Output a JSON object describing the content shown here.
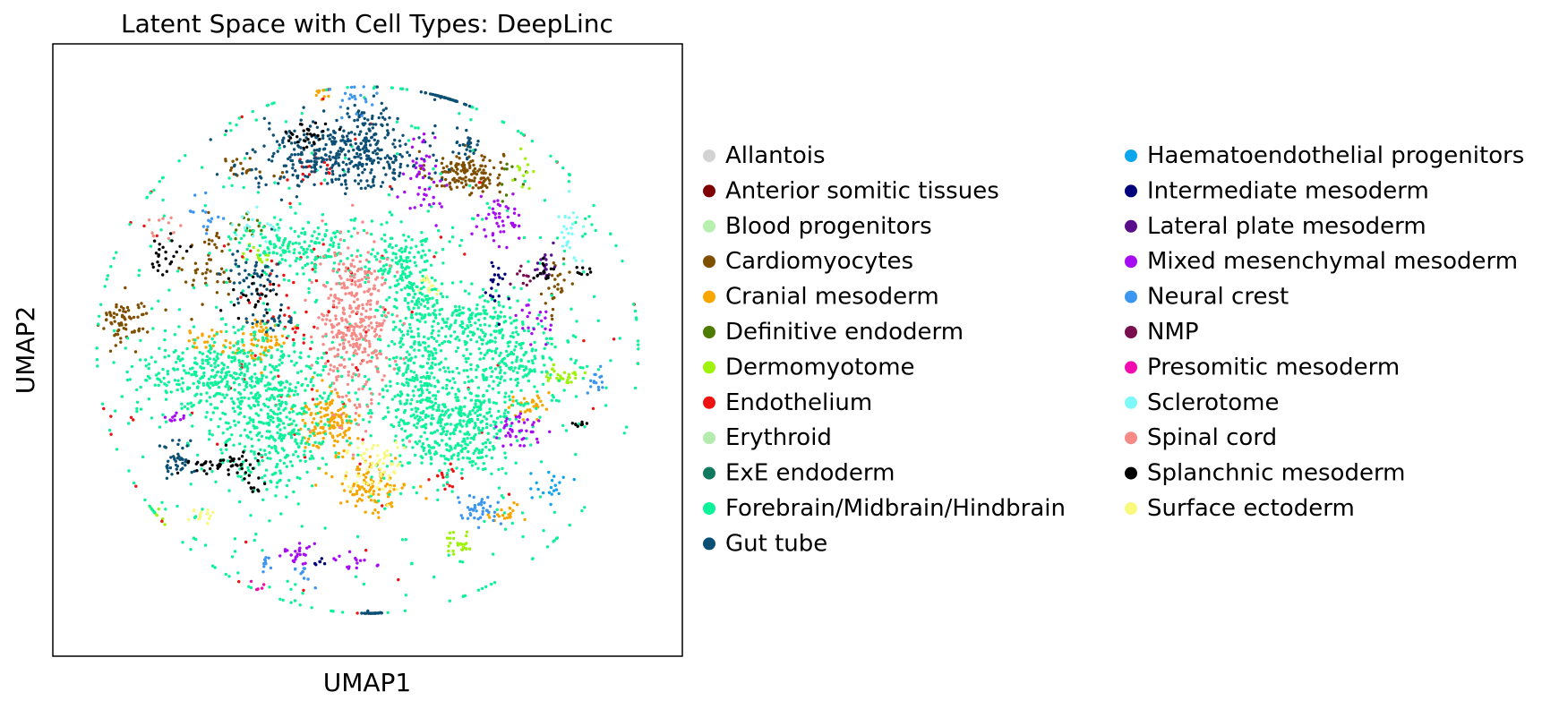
{
  "chart_data": {
    "type": "scatter",
    "title": "Latent Space with Cell Types: DeepLinc",
    "xlabel": "UMAP1",
    "ylabel": "UMAP2",
    "x_ticks": [],
    "y_ticks": [],
    "xlim": [
      -10,
      10
    ],
    "ylim": [
      -10,
      10
    ],
    "grid": false,
    "legend_position": "right",
    "series": [
      {
        "name": "Allantois",
        "color": "#d3d3d3",
        "clusters": []
      },
      {
        "name": "Anterior somitic tissues",
        "color": "#800000",
        "clusters": []
      },
      {
        "name": "Blood progenitors",
        "color": "#b8f0b0",
        "clusters": []
      },
      {
        "name": "Cardiomyocytes",
        "color": "#7f4f00",
        "clusters": [
          {
            "x": 3.1,
            "y": 5.8,
            "sx": 0.6,
            "sy": 0.35,
            "n": 140
          },
          {
            "x": -7.7,
            "y": 1.0,
            "sx": 0.4,
            "sy": 0.4,
            "n": 70
          },
          {
            "x": -5.0,
            "y": 2.6,
            "sx": 0.4,
            "sy": 0.7,
            "n": 45
          },
          {
            "x": -3.8,
            "y": 6.0,
            "sx": 0.5,
            "sy": 0.2,
            "n": 20
          },
          {
            "x": 6.0,
            "y": 2.0,
            "sx": 0.2,
            "sy": 0.5,
            "n": 25
          }
        ]
      },
      {
        "name": "Cranial mesoderm",
        "color": "#f7a600",
        "clusters": [
          {
            "x": -1.2,
            "y": -2.3,
            "sx": 0.5,
            "sy": 0.5,
            "n": 130
          },
          {
            "x": 0.1,
            "y": -4.4,
            "sx": 0.6,
            "sy": 0.5,
            "n": 110
          },
          {
            "x": -3.3,
            "y": 0.4,
            "sx": 0.35,
            "sy": 0.35,
            "n": 60
          },
          {
            "x": -5.0,
            "y": 0.3,
            "sx": 0.5,
            "sy": 0.2,
            "n": 30
          },
          {
            "x": 5.2,
            "y": -1.9,
            "sx": 0.4,
            "sy": 0.2,
            "n": 30
          },
          {
            "x": 4.3,
            "y": -5.3,
            "sx": 0.3,
            "sy": 0.2,
            "n": 20
          },
          {
            "x": -1.3,
            "y": 8.5,
            "sx": 0.2,
            "sy": 0.2,
            "n": 10
          }
        ]
      },
      {
        "name": "Definitive endoderm",
        "color": "#4f7a00",
        "clusters": [
          {
            "x": -3.8,
            "y": 4.0,
            "sx": 0.3,
            "sy": 0.2,
            "n": 15
          },
          {
            "x": 4.6,
            "y": 5.6,
            "sx": 0.2,
            "sy": 0.3,
            "n": 10
          }
        ]
      },
      {
        "name": "Dermomyotome",
        "color": "#9ef20c",
        "clusters": [
          {
            "x": 6.2,
            "y": -0.8,
            "sx": 0.25,
            "sy": 0.2,
            "n": 30
          },
          {
            "x": 2.9,
            "y": -6.3,
            "sx": 0.3,
            "sy": 0.2,
            "n": 25
          },
          {
            "x": -6.9,
            "y": -5.5,
            "sx": 0.3,
            "sy": 0.15,
            "n": 12
          },
          {
            "x": -3.4,
            "y": 3.2,
            "sx": 0.4,
            "sy": 0.2,
            "n": 15
          },
          {
            "x": 4.9,
            "y": 5.8,
            "sx": 0.2,
            "sy": 0.3,
            "n": 12
          }
        ]
      },
      {
        "name": "Endothelium",
        "color": "#ee1111",
        "clusters": [
          {
            "x": -2.2,
            "y": 1.0,
            "sx": 1.2,
            "sy": 1.6,
            "n": 60
          },
          {
            "x": 0.0,
            "y": 0.0,
            "sx": 5.5,
            "sy": 5.5,
            "n": 60
          },
          {
            "x": 2.5,
            "y": -4.2,
            "sx": 0.3,
            "sy": 0.3,
            "n": 15
          },
          {
            "x": -1.8,
            "y": 5.9,
            "sx": 0.4,
            "sy": 0.3,
            "n": 20
          }
        ]
      },
      {
        "name": "Erythroid",
        "color": "#b3ecae",
        "clusters": []
      },
      {
        "name": "ExE endoderm",
        "color": "#0f7a5e",
        "clusters": []
      },
      {
        "name": "Forebrain/Midbrain/Hindbrain",
        "color": "#0cf29a",
        "clusters": [
          {
            "x": -4.3,
            "y": -0.8,
            "sx": 1.5,
            "sy": 0.7,
            "n": 420
          },
          {
            "x": -3.0,
            "y": -2.7,
            "sx": 1.0,
            "sy": 0.9,
            "n": 300
          },
          {
            "x": 2.6,
            "y": -2.6,
            "sx": 1.1,
            "sy": 0.9,
            "n": 380
          },
          {
            "x": 1.5,
            "y": -0.9,
            "sx": 0.6,
            "sy": 0.7,
            "n": 150
          },
          {
            "x": 1.8,
            "y": 1.2,
            "sx": 0.6,
            "sy": 0.8,
            "n": 160
          },
          {
            "x": 4.5,
            "y": -0.3,
            "sx": 0.9,
            "sy": 0.8,
            "n": 220
          },
          {
            "x": -2.3,
            "y": 3.4,
            "sx": 1.0,
            "sy": 0.5,
            "n": 170
          },
          {
            "x": 1.1,
            "y": 2.9,
            "sx": 0.5,
            "sy": 0.5,
            "n": 110
          },
          {
            "x": 3.5,
            "y": 0.9,
            "sx": 0.6,
            "sy": 0.5,
            "n": 110
          },
          {
            "x": 0.0,
            "y": 0.0,
            "sx": 5.0,
            "sy": 5.0,
            "n": 500
          }
        ]
      },
      {
        "name": "Gut tube",
        "color": "#0b4f75",
        "clusters": [
          {
            "x": -1.0,
            "y": 6.4,
            "sx": 1.4,
            "sy": 0.55,
            "n": 320
          },
          {
            "x": 0.1,
            "y": 6.9,
            "sx": 0.5,
            "sy": 0.6,
            "n": 100
          },
          {
            "x": 2.6,
            "y": 8.7,
            "sx": 0.45,
            "sy": 0.25,
            "n": 50
          },
          {
            "x": 3.1,
            "y": 6.7,
            "sx": 0.2,
            "sy": 0.2,
            "n": 25
          },
          {
            "x": -3.6,
            "y": 2.3,
            "sx": 0.5,
            "sy": 0.6,
            "n": 50
          },
          {
            "x": -6.0,
            "y": -3.6,
            "sx": 0.3,
            "sy": 0.3,
            "n": 40
          },
          {
            "x": 0.2,
            "y": -8.8,
            "sx": 0.2,
            "sy": 0.2,
            "n": 25
          },
          {
            "x": -3.2,
            "y": 0.9,
            "sx": 0.3,
            "sy": 0.2,
            "n": 20
          }
        ]
      },
      {
        "name": "Haematoendothelial progenitors",
        "color": "#0da5ec",
        "clusters": [
          {
            "x": 5.8,
            "y": -4.5,
            "sx": 0.4,
            "sy": 0.2,
            "n": 20
          }
        ]
      },
      {
        "name": "Intermediate mesoderm",
        "color": "#00007a",
        "clusters": [
          {
            "x": 4.1,
            "y": 2.2,
            "sx": 0.2,
            "sy": 0.4,
            "n": 20
          },
          {
            "x": -1.5,
            "y": -6.9,
            "sx": 0.1,
            "sy": 0.1,
            "n": 6
          }
        ]
      },
      {
        "name": "Lateral plate mesoderm",
        "color": "#5a0f8a",
        "clusters": [
          {
            "x": 5.6,
            "y": 2.7,
            "sx": 0.2,
            "sy": 0.3,
            "n": 20
          }
        ]
      },
      {
        "name": "Mixed mesenchymal mesoderm",
        "color": "#a60cf2",
        "clusters": [
          {
            "x": 4.2,
            "y": 4.3,
            "sx": 0.4,
            "sy": 0.4,
            "n": 45
          },
          {
            "x": 1.8,
            "y": 5.5,
            "sx": 0.3,
            "sy": 0.6,
            "n": 45
          },
          {
            "x": 4.7,
            "y": -2.7,
            "sx": 0.35,
            "sy": 0.3,
            "n": 40
          },
          {
            "x": -2.3,
            "y": -6.6,
            "sx": 0.3,
            "sy": 0.2,
            "n": 25
          },
          {
            "x": 5.3,
            "y": 1.0,
            "sx": 0.3,
            "sy": 0.5,
            "n": 20
          },
          {
            "x": -6.1,
            "y": -2.2,
            "sx": 0.2,
            "sy": 0.1,
            "n": 10
          },
          {
            "x": -0.3,
            "y": -6.9,
            "sx": 0.4,
            "sy": 0.1,
            "n": 15
          }
        ]
      },
      {
        "name": "Neural crest",
        "color": "#3c96f0",
        "clusters": [
          {
            "x": 3.5,
            "y": -5.2,
            "sx": 0.35,
            "sy": 0.25,
            "n": 40
          },
          {
            "x": 7.2,
            "y": -0.9,
            "sx": 0.15,
            "sy": 0.3,
            "n": 15
          },
          {
            "x": -0.4,
            "y": 8.3,
            "sx": 0.3,
            "sy": 0.3,
            "n": 20
          },
          {
            "x": -5.1,
            "y": 4.4,
            "sx": 0.3,
            "sy": 0.3,
            "n": 15
          },
          {
            "x": -3.2,
            "y": -7.0,
            "sx": 0.15,
            "sy": 0.2,
            "n": 10
          },
          {
            "x": -2.0,
            "y": -7.4,
            "sx": 0.2,
            "sy": 0.2,
            "n": 10
          }
        ]
      },
      {
        "name": "NMP",
        "color": "#7a0f4f",
        "clusters": [
          {
            "x": 5.0,
            "y": 2.5,
            "sx": 0.2,
            "sy": 0.2,
            "n": 10
          }
        ]
      },
      {
        "name": "Presomitic mesoderm",
        "color": "#f20cb0",
        "clusters": [
          {
            "x": -3.4,
            "y": -7.8,
            "sx": 0.1,
            "sy": 0.1,
            "n": 5
          }
        ]
      },
      {
        "name": "Sclerotome",
        "color": "#7ef9f9",
        "clusters": [
          {
            "x": 6.4,
            "y": 4.0,
            "sx": 0.2,
            "sy": 0.6,
            "n": 25
          },
          {
            "x": -3.5,
            "y": 4.1,
            "sx": 0.4,
            "sy": 0.3,
            "n": 15
          }
        ]
      },
      {
        "name": "Spinal cord",
        "color": "#f58a86",
        "clusters": [
          {
            "x": -0.4,
            "y": 0.7,
            "sx": 0.55,
            "sy": 1.4,
            "n": 360
          },
          {
            "x": -6.4,
            "y": 4.2,
            "sx": 0.3,
            "sy": 0.3,
            "n": 10
          }
        ]
      },
      {
        "name": "Splanchnic mesoderm",
        "color": "#000000",
        "clusters": [
          {
            "x": -4.6,
            "y": -3.7,
            "sx": 0.6,
            "sy": 0.2,
            "n": 50
          },
          {
            "x": -1.8,
            "y": 7.0,
            "sx": 0.4,
            "sy": 0.2,
            "n": 30
          },
          {
            "x": -6.4,
            "y": 3.1,
            "sx": 0.3,
            "sy": 0.3,
            "n": 25
          },
          {
            "x": -3.6,
            "y": 1.8,
            "sx": 0.4,
            "sy": 0.3,
            "n": 25
          },
          {
            "x": 5.6,
            "y": 2.5,
            "sx": 0.2,
            "sy": 0.3,
            "n": 15
          },
          {
            "x": -3.6,
            "y": -4.4,
            "sx": 0.2,
            "sy": 0.15,
            "n": 10
          },
          {
            "x": 6.9,
            "y": 2.6,
            "sx": 0.15,
            "sy": 0.1,
            "n": 8
          },
          {
            "x": 6.9,
            "y": -2.4,
            "sx": 0.2,
            "sy": 0.1,
            "n": 8
          }
        ]
      },
      {
        "name": "Surface ectoderm",
        "color": "#f9f97e",
        "clusters": [
          {
            "x": 0.2,
            "y": -3.9,
            "sx": 0.5,
            "sy": 0.5,
            "n": 60
          },
          {
            "x": -5.3,
            "y": -5.4,
            "sx": 0.2,
            "sy": 0.15,
            "n": 15
          },
          {
            "x": 1.9,
            "y": 2.0,
            "sx": 0.2,
            "sy": 0.2,
            "n": 15
          }
        ]
      }
    ]
  }
}
